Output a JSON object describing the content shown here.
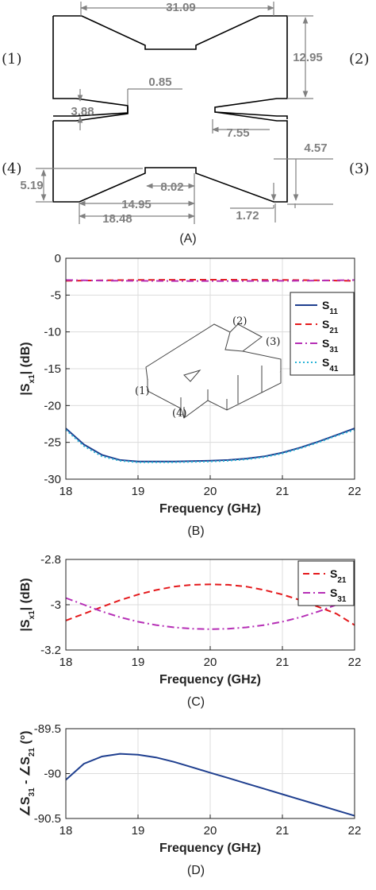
{
  "panel_a": {
    "label": "(A)",
    "ports": [
      "(1)",
      "(2)",
      "(3)",
      "(4)"
    ],
    "dimensions": [
      "31.09",
      "12.95",
      "0.85",
      "3.88",
      "7.55",
      "4.57",
      "5.19",
      "8.02",
      "14.95",
      "18.48",
      "1.72"
    ]
  },
  "chart_data": [
    {
      "type": "line",
      "panel": "(B)",
      "xlabel": "Frequency (GHz)",
      "ylabel_parts": [
        "|S",
        "x1",
        "| (dB)"
      ],
      "xlim": [
        18,
        22
      ],
      "ylim": [
        -30,
        0
      ],
      "xticks": [
        "18",
        "19",
        "20",
        "21",
        "22"
      ],
      "yticks": [
        "-30",
        "-25",
        "-20",
        "-15",
        "-10",
        "-5",
        "0"
      ],
      "grid": true,
      "legend_position": "right",
      "x": [
        18,
        18.25,
        18.5,
        18.75,
        19,
        19.25,
        19.5,
        19.75,
        20,
        20.25,
        20.5,
        20.75,
        21,
        21.25,
        21.5,
        21.75,
        22
      ],
      "series": [
        {
          "name_parts": [
            "S",
            "11"
          ],
          "color": "#1f3f8f",
          "style": "solid",
          "values": [
            -23.1,
            -25.3,
            -26.7,
            -27.4,
            -27.6,
            -27.6,
            -27.6,
            -27.55,
            -27.5,
            -27.4,
            -27.2,
            -26.9,
            -26.4,
            -25.7,
            -24.9,
            -24.0,
            -23.1
          ]
        },
        {
          "name_parts": [
            "S",
            "21"
          ],
          "color": "#e4191c",
          "style": "dash",
          "values": [
            -3.07,
            -3.03,
            -3.0,
            -2.97,
            -2.95,
            -2.93,
            -2.92,
            -2.91,
            -2.91,
            -2.91,
            -2.92,
            -2.93,
            -2.95,
            -2.97,
            -3.0,
            -3.03,
            -3.07
          ]
        },
        {
          "name_parts": [
            "S",
            "31"
          ],
          "color": "#b62fb6",
          "style": "dashdot",
          "values": [
            -2.96,
            -3.0,
            -3.03,
            -3.05,
            -3.07,
            -3.08,
            -3.09,
            -3.09,
            -3.09,
            -3.09,
            -3.09,
            -3.08,
            -3.07,
            -3.05,
            -3.03,
            -3.0,
            -2.96
          ]
        },
        {
          "name_parts": [
            "S",
            "41"
          ],
          "color": "#27b3d6",
          "style": "dot",
          "values": [
            -23.3,
            -25.5,
            -26.9,
            -27.5,
            -27.7,
            -27.7,
            -27.7,
            -27.65,
            -27.6,
            -27.5,
            -27.3,
            -27.0,
            -26.5,
            -25.8,
            -25.0,
            -24.1,
            -23.3
          ]
        }
      ],
      "inset_ports": [
        "(1)",
        "(2)",
        "(3)",
        "(4)"
      ]
    },
    {
      "type": "line",
      "panel": "(C)",
      "xlabel": "Frequency (GHz)",
      "ylabel_parts": [
        "|S",
        "x1",
        "| (dB)"
      ],
      "xlim": [
        18,
        22
      ],
      "ylim": [
        -3.2,
        -2.8
      ],
      "xticks": [
        "18",
        "19",
        "20",
        "21",
        "22"
      ],
      "yticks": [
        "-3.2",
        "-3",
        "-2.8"
      ],
      "grid": true,
      "legend_position": "top-right",
      "x": [
        18,
        18.25,
        18.5,
        18.75,
        19,
        19.25,
        19.5,
        19.75,
        20,
        20.25,
        20.5,
        20.75,
        21,
        21.25,
        21.5,
        21.75,
        22
      ],
      "series": [
        {
          "name_parts": [
            "S",
            "21"
          ],
          "color": "#e4191c",
          "style": "dash",
          "values": [
            -3.07,
            -3.04,
            -3.01,
            -2.98,
            -2.955,
            -2.935,
            -2.92,
            -2.912,
            -2.91,
            -2.912,
            -2.92,
            -2.935,
            -2.955,
            -2.98,
            -3.01,
            -3.04,
            -3.09
          ]
        },
        {
          "name_parts": [
            "S",
            "31"
          ],
          "color": "#b62fb6",
          "style": "dashdot",
          "values": [
            -2.97,
            -3.0,
            -3.03,
            -3.055,
            -3.075,
            -3.09,
            -3.1,
            -3.106,
            -3.108,
            -3.106,
            -3.1,
            -3.09,
            -3.075,
            -3.055,
            -3.03,
            -3.0,
            -2.95
          ]
        }
      ]
    },
    {
      "type": "line",
      "panel": "(D)",
      "xlabel": "Frequency (GHz)",
      "ylabel_parts": [
        "∠S",
        "31",
        " - ∠S",
        "21",
        " (°)"
      ],
      "xlim": [
        18,
        22
      ],
      "ylim": [
        -90.5,
        -89.5
      ],
      "xticks": [
        "18",
        "19",
        "20",
        "21",
        "22"
      ],
      "yticks": [
        "-90.5",
        "-90",
        "-89.5"
      ],
      "grid": true,
      "x": [
        18,
        18.25,
        18.5,
        18.75,
        19,
        19.25,
        19.5,
        19.75,
        20,
        20.25,
        20.5,
        20.75,
        21,
        21.25,
        21.5,
        21.75,
        22
      ],
      "series": [
        {
          "color": "#1f3f8f",
          "style": "solid",
          "values": [
            -90.07,
            -89.89,
            -89.81,
            -89.78,
            -89.79,
            -89.82,
            -89.87,
            -89.93,
            -89.99,
            -90.05,
            -90.11,
            -90.17,
            -90.23,
            -90.29,
            -90.35,
            -90.41,
            -90.47
          ]
        }
      ]
    }
  ]
}
